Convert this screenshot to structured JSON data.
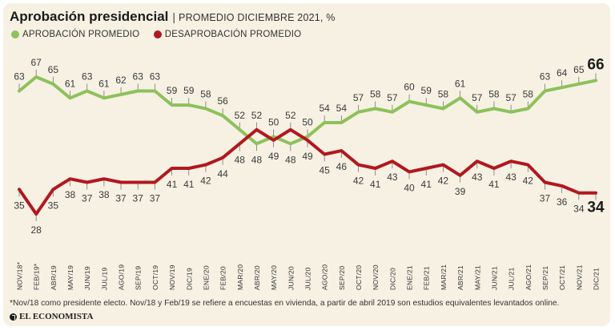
{
  "header": {
    "title": "Aprobación presidencial",
    "separator": "|",
    "subtitle": "PROMEDIO DICIEMBRE 2021, %"
  },
  "legend": {
    "approval_label": "APROBACIÓN PROMEDIO",
    "disapproval_label": "DESAPROBACIÓN PROMEDIO"
  },
  "colors": {
    "approval": "#8dc15a",
    "disapproval": "#b2171f",
    "background": "#f6f1e3"
  },
  "chart_data": {
    "type": "line",
    "title": "Aprobación presidencial",
    "subtitle": "PROMEDIO DICIEMBRE 2021, %",
    "xlabel": "",
    "ylabel": "",
    "ylim": [
      28,
      67
    ],
    "categories": [
      "NOV/18*",
      "FEB/19*",
      "ABR/19",
      "MAY/19",
      "JUN/19",
      "JUL/19",
      "AGO/19",
      "SEP/19",
      "OCT/19",
      "NOV/19",
      "DIC/19",
      "ENE/20",
      "FEB/20",
      "MAR/20",
      "ABR/20",
      "MAY/20",
      "JUN/20",
      "JUL/20",
      "AGO/20",
      "SEP/20",
      "OCT/20",
      "NOV/20",
      "DIC/20",
      "ENE/21",
      "FEB/21",
      "MAR/21",
      "ABR/21",
      "MAY/21",
      "JUN/21",
      "JUL/21",
      "AGO/21",
      "SEP/21",
      "OCT/21",
      "NOV/21",
      "DIC/21"
    ],
    "series": [
      {
        "name": "APROBACIÓN PROMEDIO",
        "values": [
          63,
          67,
          65,
          61,
          63,
          61,
          62,
          63,
          63,
          59,
          59,
          58,
          56,
          52,
          48,
          50,
          48,
          50,
          54,
          54,
          57,
          58,
          57,
          60,
          59,
          58,
          61,
          57,
          58,
          57,
          58,
          63,
          64,
          65,
          66
        ]
      },
      {
        "name": "DESAPROBACIÓN PROMEDIO",
        "values": [
          35,
          28,
          35,
          38,
          37,
          38,
          37,
          37,
          37,
          41,
          41,
          42,
          44,
          48,
          52,
          49,
          52,
          49,
          45,
          46,
          42,
          41,
          43,
          40,
          41,
          42,
          39,
          43,
          41,
          43,
          42,
          37,
          36,
          34,
          34
        ]
      }
    ]
  },
  "footnote": "*Nov/18 como presidente electo. Nov/18 y Feb/19 se refiere a encuestas en vivienda, a partir de abril 2019 son estudios equivalentes levantados online.",
  "source": "EL ECONOMISTA"
}
